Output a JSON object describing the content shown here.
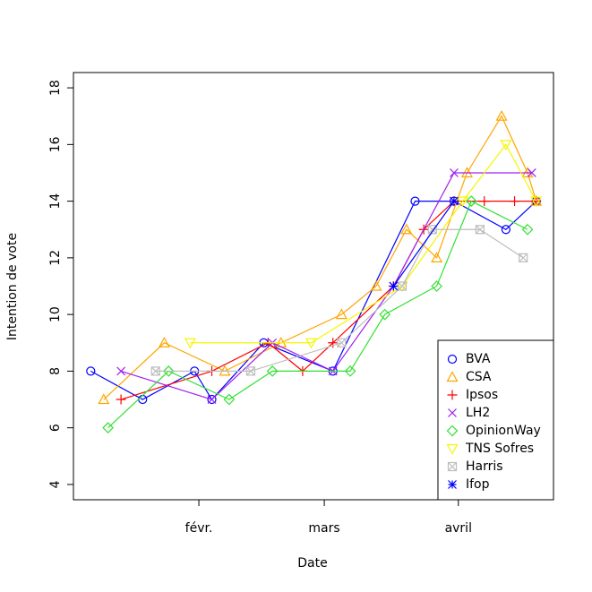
{
  "chart_data": {
    "type": "line",
    "xlabel": "Date",
    "ylabel": "Intention de vote",
    "xlim": [
      3,
      114
    ],
    "ylim": [
      3.46,
      18.54
    ],
    "xticks": [
      {
        "value": 32,
        "label": "févr."
      },
      {
        "value": 61,
        "label": "mars"
      },
      {
        "value": 92,
        "label": "avril"
      }
    ],
    "yticks": [
      4,
      6,
      8,
      10,
      12,
      14,
      16,
      18
    ],
    "legend": "bottomright",
    "series": [
      {
        "name": "BVA",
        "color": "#0000ff",
        "marker": "circle",
        "x": [
          7,
          19,
          31,
          35,
          47,
          63,
          82,
          91,
          103,
          110
        ],
        "values": [
          8,
          7,
          8,
          7,
          9,
          8,
          14,
          14,
          13,
          14
        ]
      },
      {
        "name": "CSA",
        "color": "#ffa500",
        "marker": "triangle",
        "x": [
          10,
          24,
          38,
          51,
          65,
          73,
          80,
          87,
          94,
          102,
          108,
          110
        ],
        "values": [
          7,
          9,
          8,
          9,
          10,
          11,
          13,
          12,
          15,
          17,
          15,
          14
        ]
      },
      {
        "name": "Ipsos",
        "color": "#ff0000",
        "marker": "plus",
        "x": [
          14,
          35,
          48,
          56,
          63,
          77,
          84,
          91,
          98,
          105,
          110
        ],
        "values": [
          7,
          8,
          9,
          8,
          9,
          11,
          13,
          14,
          14,
          14,
          14
        ]
      },
      {
        "name": "LH2",
        "color": "#a020f0",
        "marker": "cross",
        "x": [
          14,
          35,
          49,
          63,
          77,
          91,
          109
        ],
        "values": [
          8,
          7,
          9,
          8,
          11,
          15,
          15
        ]
      },
      {
        "name": "OpinionWay",
        "color": "#33e033",
        "marker": "diamond",
        "x": [
          11,
          25,
          39,
          49,
          67,
          75,
          87,
          95,
          108
        ],
        "values": [
          6,
          8,
          7,
          8,
          8,
          10,
          11,
          14,
          13
        ]
      },
      {
        "name": "TNS Sofres",
        "color": "#f5f500",
        "marker": "triangle-down",
        "x": [
          30,
          58,
          79,
          93,
          103,
          110
        ],
        "values": [
          9,
          9,
          11,
          14,
          16,
          14
        ]
      },
      {
        "name": "Harris",
        "color": "#bebebe",
        "marker": "boxx",
        "x": [
          22,
          44,
          65,
          79,
          86,
          97,
          107
        ],
        "values": [
          8,
          8,
          9,
          11,
          13,
          13,
          12
        ]
      },
      {
        "name": "Ifop",
        "color": "#0000ff",
        "marker": "star",
        "x": [
          77,
          91
        ],
        "values": [
          11,
          14
        ]
      }
    ]
  }
}
